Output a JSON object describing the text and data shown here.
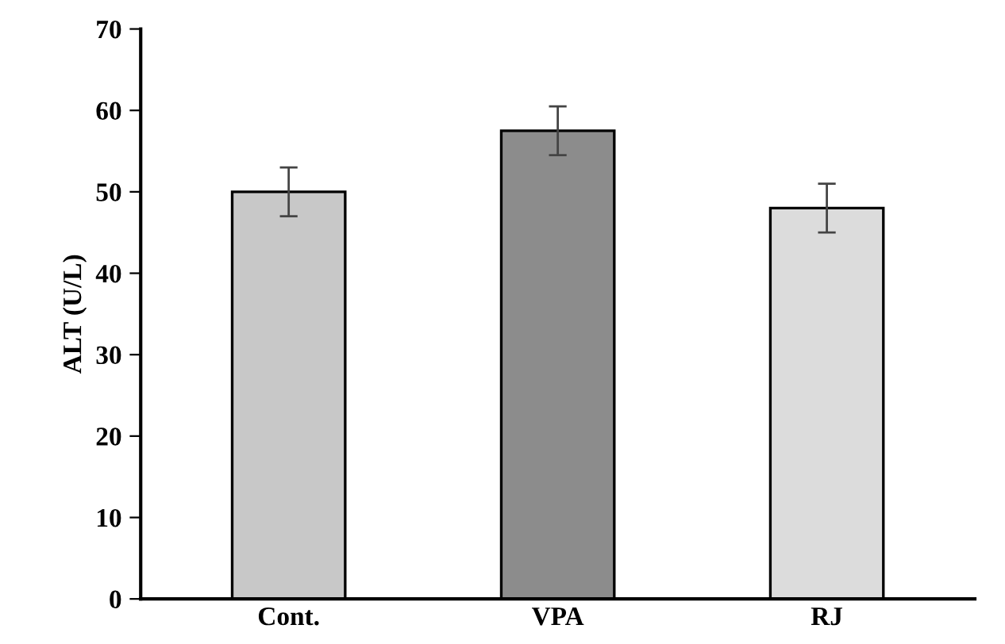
{
  "chart_data": {
    "type": "bar",
    "ylabel": "ALT (U/L)",
    "categories": [
      "Cont.",
      "VPA",
      "RJ"
    ],
    "values": [
      50,
      57.5,
      48
    ],
    "errors": [
      3,
      3,
      3
    ],
    "colors": [
      "#c8c8c8",
      "#8c8c8c",
      "#dcdcdc"
    ],
    "ylim": [
      0,
      70
    ],
    "yticks": [
      0,
      10,
      20,
      30,
      40,
      50,
      60,
      70
    ],
    "grid": false,
    "legend": false
  }
}
